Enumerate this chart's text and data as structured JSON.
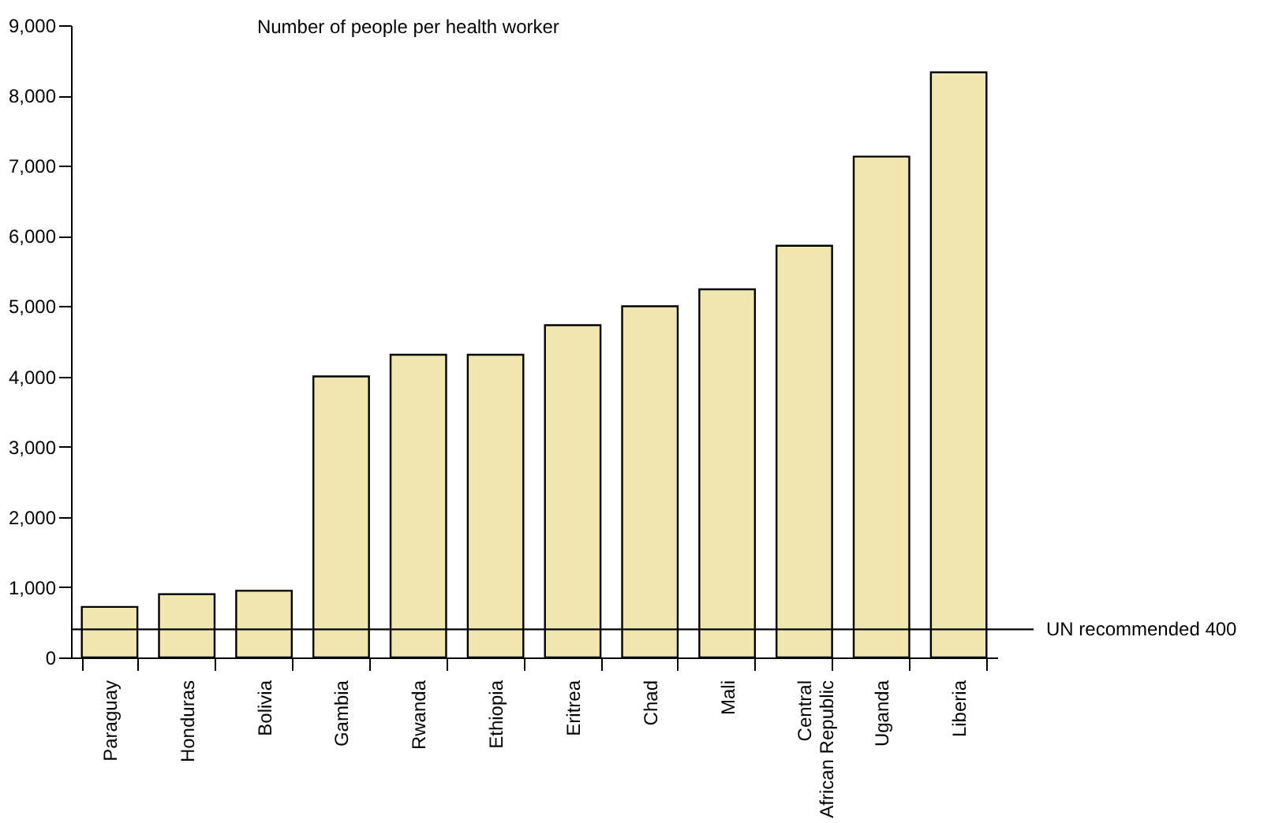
{
  "chart_data": {
    "type": "bar",
    "title": "Number of people per health worker",
    "categories": [
      "Paraguay",
      "Honduras",
      "Bolivia",
      "Gambia",
      "Rwanda",
      "Ethiopia",
      "Eritrea",
      "Chad",
      "Mali",
      "Central\nAfrican Republic",
      "Uganda",
      "Liberia"
    ],
    "values": [
      720,
      900,
      950,
      4000,
      4310,
      4310,
      4730,
      5000,
      5240,
      5860,
      7130,
      8330
    ],
    "color": "#efe6b0",
    "ylim": [
      0,
      9000
    ],
    "yticks": [
      0,
      {
        "value": 1000,
        "label": "1,000"
      },
      {
        "value": 2000,
        "label": "2,000"
      },
      {
        "value": 3000,
        "label": "3,000"
      },
      {
        "value": 4000,
        "label": "4,000"
      },
      {
        "value": 5000,
        "label": "5,000"
      },
      {
        "value": 6000,
        "label": "6,000"
      },
      {
        "value": 7000,
        "label": "7,000"
      },
      {
        "value": 8000,
        "label": "8,000"
      },
      {
        "value": 9000,
        "label": "9,000"
      }
    ],
    "ref_lines": [
      {
        "axis": "y",
        "value": 400,
        "label": "UN recommended 400"
      }
    ],
    "grid": false
  }
}
